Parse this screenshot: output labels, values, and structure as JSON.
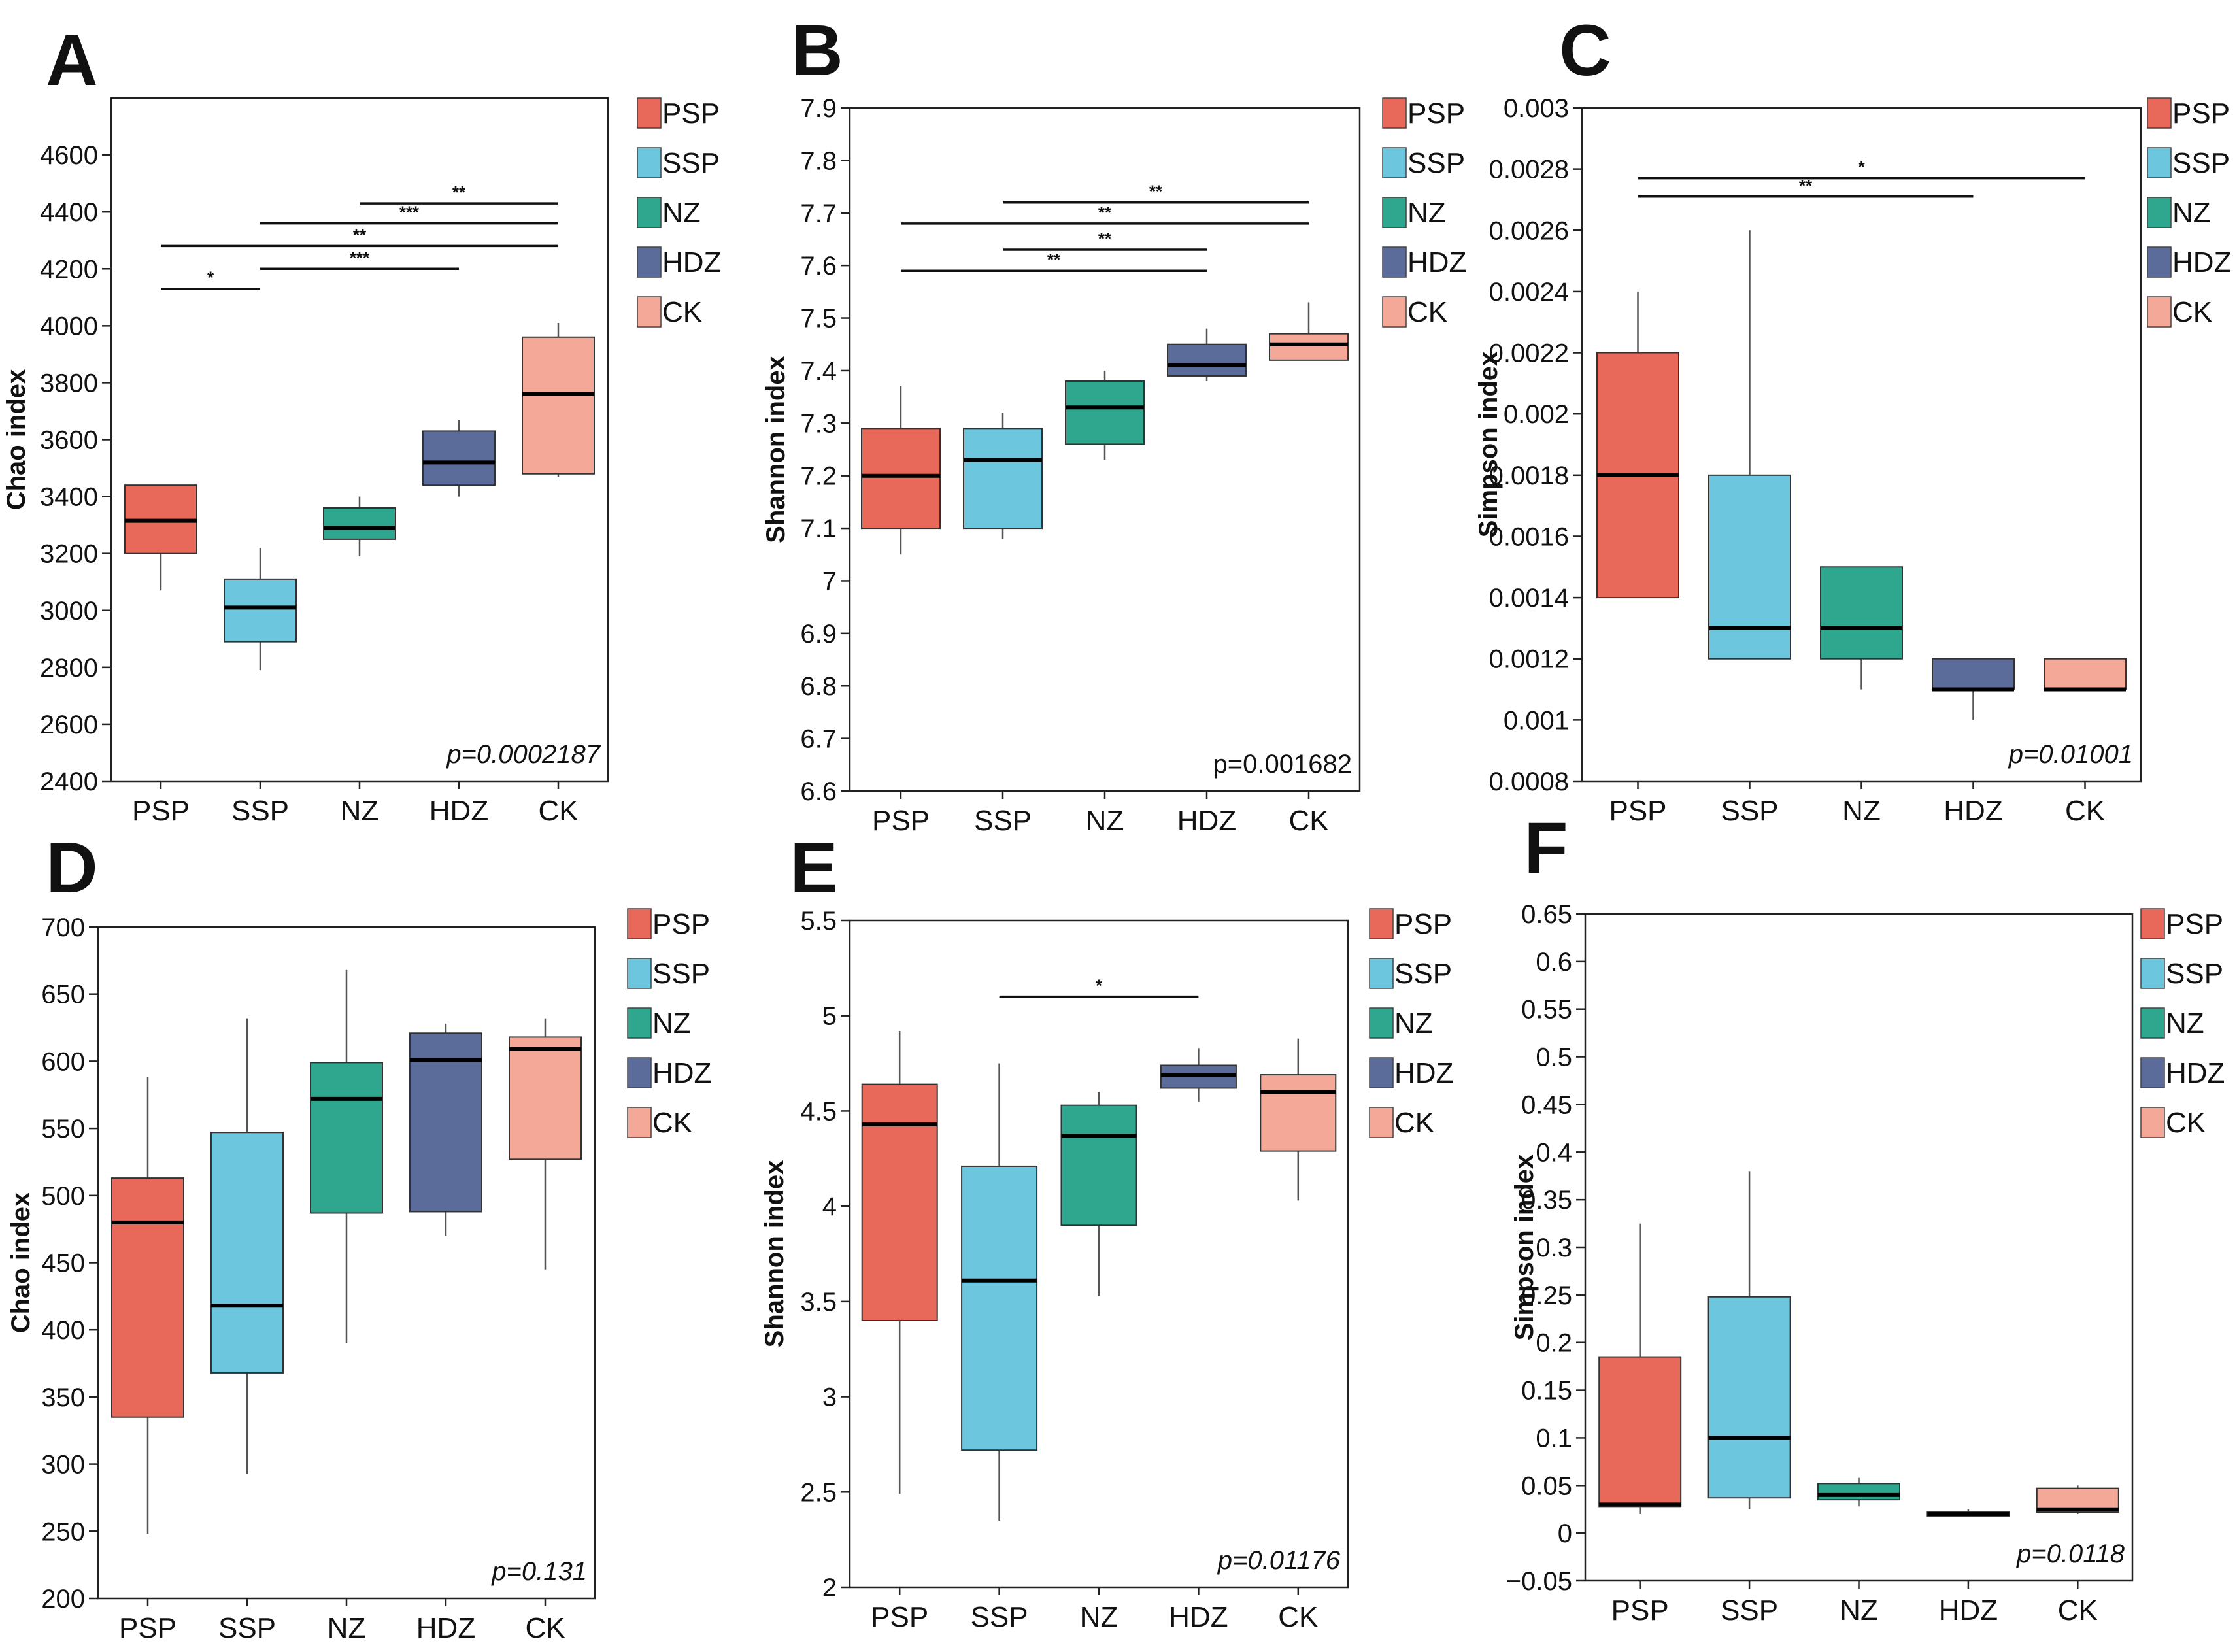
{
  "colors": {
    "PSP": "#E8695A",
    "SSP": "#6CC6DD",
    "NZ": "#2FA68E",
    "HDZ": "#5B6B9A",
    "CK": "#F3A898"
  },
  "chart_data": [
    {
      "panel": "A",
      "type": "box",
      "ylabel": "Chao index",
      "p_value": "p=0.0002187",
      "p_italic": true,
      "categories": [
        "PSP",
        "SSP",
        "NZ",
        "HDZ",
        "CK"
      ],
      "ylim": [
        2400,
        4800
      ],
      "ticks": [
        2400,
        2600,
        2800,
        3000,
        3200,
        3400,
        3600,
        3800,
        4000,
        4200,
        4400,
        4600
      ],
      "boxes": [
        {
          "min": 3070,
          "q1": 3200,
          "median": 3315,
          "q3": 3440,
          "max": 3440
        },
        {
          "min": 2790,
          "q1": 2890,
          "median": 3010,
          "q3": 3110,
          "max": 3220
        },
        {
          "min": 3190,
          "q1": 3250,
          "median": 3290,
          "q3": 3360,
          "max": 3400
        },
        {
          "min": 3400,
          "q1": 3440,
          "median": 3520,
          "q3": 3630,
          "max": 3670
        },
        {
          "min": 3470,
          "q1": 3480,
          "median": 3760,
          "q3": 3960,
          "max": 4010
        }
      ],
      "signif": [
        {
          "from": 0,
          "to": 1,
          "y": 4130,
          "label": "*"
        },
        {
          "from": 1,
          "to": 3,
          "y": 4200,
          "label": "***"
        },
        {
          "from": 0,
          "to": 4,
          "y": 4280,
          "label": "**"
        },
        {
          "from": 1,
          "to": 4,
          "y": 4360,
          "label": "***"
        },
        {
          "from": 2,
          "to": 4,
          "y": 4430,
          "label": "**"
        }
      ]
    },
    {
      "panel": "B",
      "type": "box",
      "ylabel": "Shannon index",
      "p_value": "p=0.001682",
      "p_italic": false,
      "categories": [
        "PSP",
        "SSP",
        "NZ",
        "HDZ",
        "CK"
      ],
      "ylim": [
        6.6,
        7.9
      ],
      "ticks": [
        "6.6",
        "6.7",
        "6.8",
        "6.9",
        "7",
        "7.1",
        "7.2",
        "7.3",
        "7.4",
        "7.5",
        "7.6",
        "7.7",
        "7.8",
        "7.9"
      ],
      "boxes": [
        {
          "min": 7.05,
          "q1": 7.1,
          "median": 7.2,
          "q3": 7.29,
          "max": 7.37
        },
        {
          "min": 7.08,
          "q1": 7.1,
          "median": 7.23,
          "q3": 7.29,
          "max": 7.32
        },
        {
          "min": 7.23,
          "q1": 7.26,
          "median": 7.33,
          "q3": 7.38,
          "max": 7.4
        },
        {
          "min": 7.38,
          "q1": 7.39,
          "median": 7.41,
          "q3": 7.45,
          "max": 7.48
        },
        {
          "min": 7.42,
          "q1": 7.42,
          "median": 7.45,
          "q3": 7.47,
          "max": 7.53
        }
      ],
      "signif": [
        {
          "from": 0,
          "to": 3,
          "y": 7.59,
          "label": "**"
        },
        {
          "from": 1,
          "to": 3,
          "y": 7.63,
          "label": "**"
        },
        {
          "from": 0,
          "to": 4,
          "y": 7.68,
          "label": "**"
        },
        {
          "from": 1,
          "to": 4,
          "y": 7.72,
          "label": "**"
        }
      ]
    },
    {
      "panel": "C",
      "type": "box",
      "ylabel": "Simpson index",
      "p_value": "p=0.01001",
      "p_italic": true,
      "categories": [
        "PSP",
        "SSP",
        "NZ",
        "HDZ",
        "CK"
      ],
      "ylim": [
        0.0008,
        0.003
      ],
      "ticks": [
        "0.0008",
        "0.001",
        "0.0012",
        "0.0014",
        "0.0016",
        "0.0018",
        "0.002",
        "0.0022",
        "0.0024",
        "0.0026",
        "0.0028",
        "0.003"
      ],
      "boxes": [
        {
          "min": 0.0014,
          "q1": 0.0014,
          "median": 0.0018,
          "q3": 0.0022,
          "max": 0.0024
        },
        {
          "min": 0.0012,
          "q1": 0.0012,
          "median": 0.0013,
          "q3": 0.0018,
          "max": 0.0026
        },
        {
          "min": 0.0011,
          "q1": 0.0012,
          "median": 0.0013,
          "q3": 0.0015,
          "max": 0.0015
        },
        {
          "min": 0.001,
          "q1": 0.0011,
          "median": 0.0011,
          "q3": 0.0012,
          "max": 0.0012
        },
        {
          "min": 0.0011,
          "q1": 0.0011,
          "median": 0.0011,
          "q3": 0.0012,
          "max": 0.0012
        }
      ],
      "signif": [
        {
          "from": 0,
          "to": 3,
          "y": 0.00271,
          "label": "**"
        },
        {
          "from": 0,
          "to": 4,
          "y": 0.00277,
          "label": "*"
        }
      ]
    },
    {
      "panel": "D",
      "type": "box",
      "ylabel": "Chao index",
      "p_value": "p=0.131",
      "p_italic": true,
      "categories": [
        "PSP",
        "SSP",
        "NZ",
        "HDZ",
        "CK"
      ],
      "ylim": [
        200,
        700
      ],
      "ticks": [
        200,
        250,
        300,
        350,
        400,
        450,
        500,
        550,
        600,
        650,
        700
      ],
      "boxes": [
        {
          "min": 248,
          "q1": 335,
          "median": 480,
          "q3": 513,
          "max": 588
        },
        {
          "min": 293,
          "q1": 368,
          "median": 418,
          "q3": 547,
          "max": 632
        },
        {
          "min": 390,
          "q1": 487,
          "median": 572,
          "q3": 599,
          "max": 668
        },
        {
          "min": 470,
          "q1": 488,
          "median": 601,
          "q3": 621,
          "max": 628
        },
        {
          "min": 445,
          "q1": 527,
          "median": 609,
          "q3": 618,
          "max": 632
        }
      ],
      "signif": []
    },
    {
      "panel": "E",
      "type": "box",
      "ylabel": "Shannon index",
      "p_value": "p=0.01176",
      "p_italic": true,
      "categories": [
        "PSP",
        "SSP",
        "NZ",
        "HDZ",
        "CK"
      ],
      "ylim": [
        2,
        5.5
      ],
      "ticks": [
        "2",
        "2.5",
        "3",
        "3.5",
        "4",
        "4.5",
        "5",
        "5.5"
      ],
      "boxes": [
        {
          "min": 2.49,
          "q1": 3.4,
          "median": 4.43,
          "q3": 4.64,
          "max": 4.92
        },
        {
          "min": 2.35,
          "q1": 2.72,
          "median": 3.61,
          "q3": 4.21,
          "max": 4.75
        },
        {
          "min": 3.53,
          "q1": 3.9,
          "median": 4.37,
          "q3": 4.53,
          "max": 4.6
        },
        {
          "min": 4.55,
          "q1": 4.62,
          "median": 4.69,
          "q3": 4.74,
          "max": 4.83
        },
        {
          "min": 4.03,
          "q1": 4.29,
          "median": 4.6,
          "q3": 4.69,
          "max": 4.88
        }
      ],
      "signif": [
        {
          "from": 1,
          "to": 3,
          "y": 5.1,
          "label": "*"
        }
      ]
    },
    {
      "panel": "F",
      "type": "box",
      "ylabel": "Simpson index",
      "p_value": "p=0.0118",
      "p_italic": true,
      "categories": [
        "PSP",
        "SSP",
        "NZ",
        "HDZ",
        "CK"
      ],
      "ylim": [
        -0.05,
        0.65
      ],
      "ticks": [
        "−0.05",
        "0",
        "0.05",
        "0.1",
        "0.15",
        "0.2",
        "0.25",
        "0.3",
        "0.35",
        "0.4",
        "0.45",
        "0.5",
        "0.55",
        "0.6",
        "0.65"
      ],
      "boxes": [
        {
          "min": 0.02,
          "q1": 0.028,
          "median": 0.03,
          "q3": 0.185,
          "max": 0.325
        },
        {
          "min": 0.025,
          "q1": 0.037,
          "median": 0.1,
          "q3": 0.248,
          "max": 0.38
        },
        {
          "min": 0.028,
          "q1": 0.035,
          "median": 0.04,
          "q3": 0.052,
          "max": 0.058
        },
        {
          "min": 0.018,
          "q1": 0.018,
          "median": 0.02,
          "q3": 0.022,
          "max": 0.025
        },
        {
          "min": 0.02,
          "q1": 0.022,
          "median": 0.025,
          "q3": 0.047,
          "max": 0.05
        }
      ],
      "signif": []
    }
  ]
}
